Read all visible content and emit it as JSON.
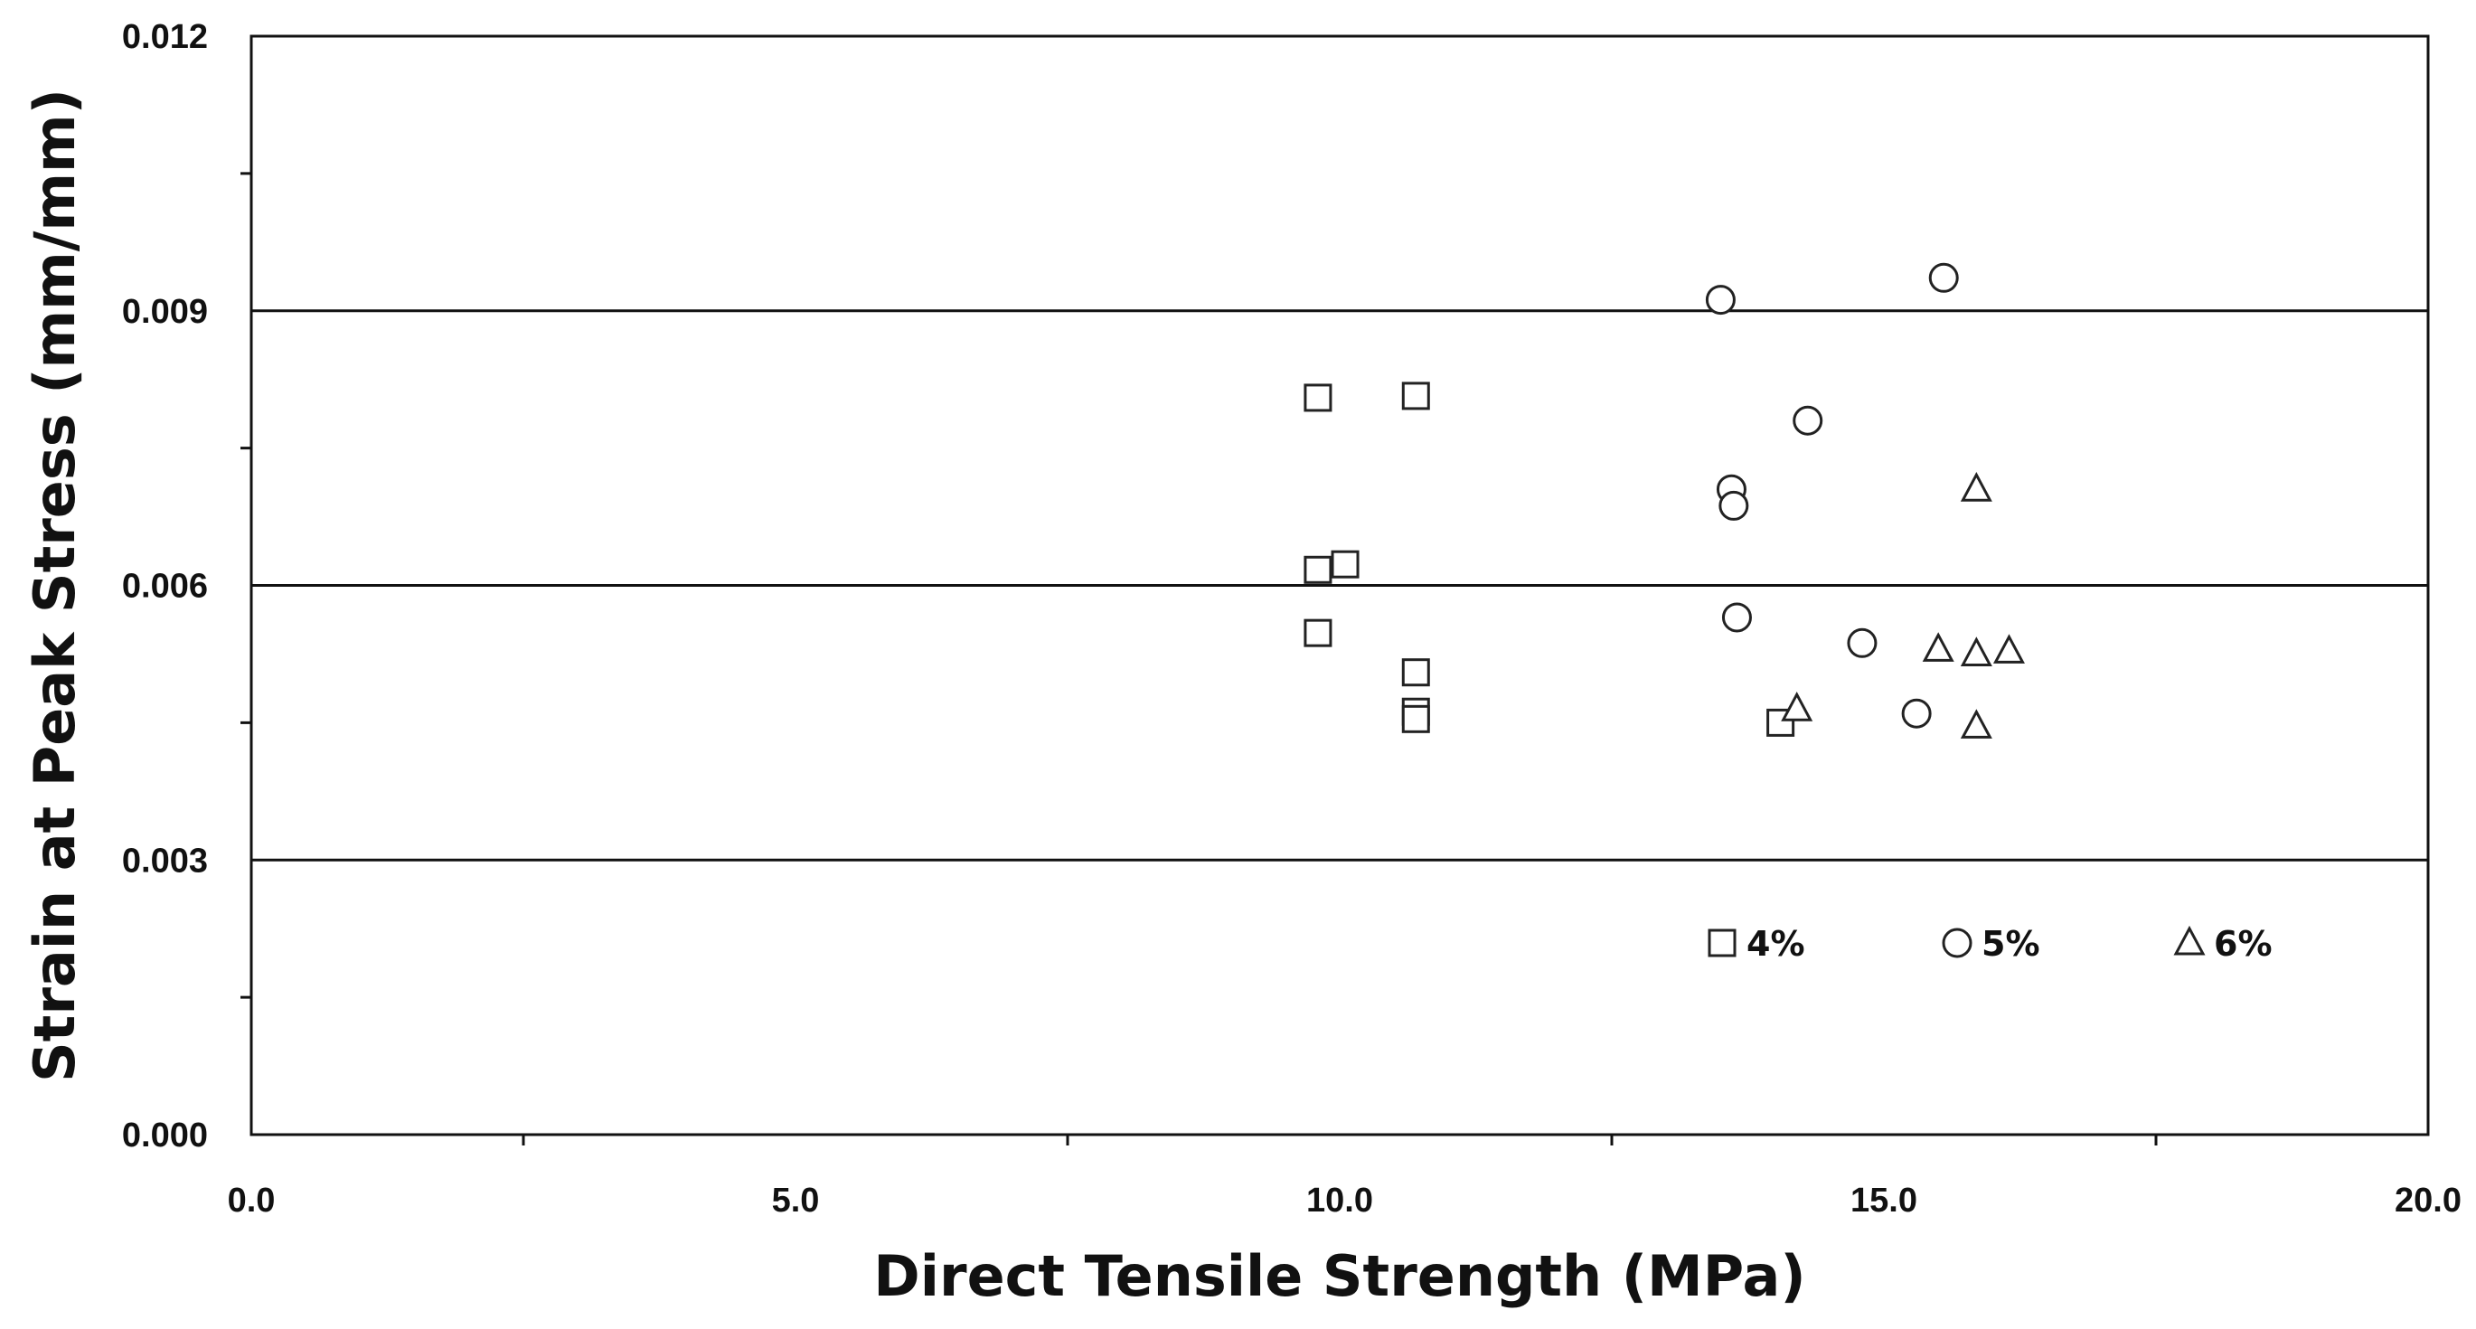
{
  "chart_data": {
    "type": "scatter",
    "title": "",
    "xlabel": "Direct Tensile Strength (MPa)",
    "ylabel": "Strain at Peak Stress (mm/mm)",
    "xlim": [
      0,
      20
    ],
    "ylim": [
      0,
      0.012
    ],
    "x_ticks": [
      "0.0",
      "5.0",
      "10.0",
      "15.0",
      "20.0"
    ],
    "x_minor_ticks": [
      2.5,
      7.5,
      12.5,
      17.5
    ],
    "y_ticks": [
      "0.000",
      "0.003",
      "0.006",
      "0.009",
      "0.012"
    ],
    "y_minor_ticks": [
      0.0015,
      0.0045,
      0.0075,
      0.0105
    ],
    "grid": "horizontal major lines",
    "legend_position": "inside-bottom-right",
    "series": [
      {
        "name": "4%",
        "marker": "square",
        "points": [
          {
            "x": 9.8,
            "y": 0.00805
          },
          {
            "x": 10.7,
            "y": 0.00807
          },
          {
            "x": 9.8,
            "y": 0.00617
          },
          {
            "x": 10.05,
            "y": 0.00623
          },
          {
            "x": 9.8,
            "y": 0.00548
          },
          {
            "x": 10.7,
            "y": 0.00505
          },
          {
            "x": 10.7,
            "y": 0.00462
          },
          {
            "x": 10.7,
            "y": 0.00454
          },
          {
            "x": 14.05,
            "y": 0.0045
          }
        ]
      },
      {
        "name": "5%",
        "marker": "circle",
        "points": [
          {
            "x": 13.5,
            "y": 0.00912
          },
          {
            "x": 15.55,
            "y": 0.00936
          },
          {
            "x": 14.3,
            "y": 0.0078
          },
          {
            "x": 13.6,
            "y": 0.00705
          },
          {
            "x": 13.62,
            "y": 0.00687
          },
          {
            "x": 13.65,
            "y": 0.00565
          },
          {
            "x": 14.8,
            "y": 0.00537
          },
          {
            "x": 15.3,
            "y": 0.0046
          }
        ]
      },
      {
        "name": "6%",
        "marker": "triangle",
        "points": [
          {
            "x": 15.85,
            "y": 0.00705
          },
          {
            "x": 15.5,
            "y": 0.0053
          },
          {
            "x": 15.85,
            "y": 0.00525
          },
          {
            "x": 16.15,
            "y": 0.00528
          },
          {
            "x": 14.2,
            "y": 0.00465
          },
          {
            "x": 15.85,
            "y": 0.00446
          }
        ]
      }
    ]
  },
  "colors": {
    "background": "#ffffff",
    "axes": "#111111",
    "marker_stroke": "#222222",
    "marker_fill": "#ffffff"
  }
}
